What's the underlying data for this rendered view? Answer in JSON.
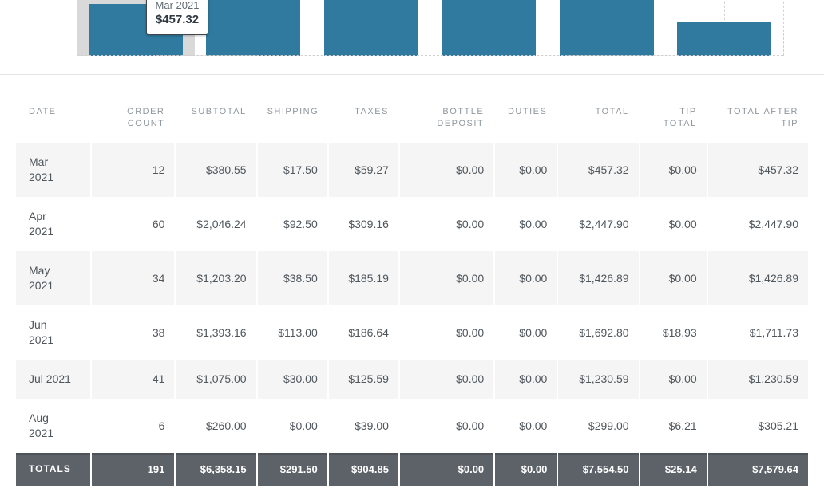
{
  "chart": {
    "tooltip": {
      "label": "Mar 2021",
      "value": "$457.32"
    },
    "hovered_index": 0,
    "colors": {
      "bar": "#2f7a9e",
      "hover_band": "#d9d9d9",
      "dashed_line": "#cfcfcf"
    }
  },
  "chart_data": {
    "type": "bar",
    "categories": [
      "Mar 2021",
      "Apr 2021",
      "May 2021",
      "Jun 2021",
      "Jul 2021",
      "Aug 2021"
    ],
    "values": [
      457.32,
      2447.9,
      1426.89,
      1692.8,
      1230.59,
      299.0
    ],
    "series_name": "Total",
    "title": "",
    "xlabel": "",
    "ylabel": "",
    "legend": false,
    "grid": false,
    "note_visible_tooltip": "Mar 2021 $457.32"
  },
  "table": {
    "columns": [
      {
        "label": "Date"
      },
      {
        "label": "Order Count"
      },
      {
        "label": "Subtotal"
      },
      {
        "label": "Shipping"
      },
      {
        "label": "Taxes"
      },
      {
        "label": "Bottle Deposit"
      },
      {
        "label": "Duties"
      },
      {
        "label": "Total"
      },
      {
        "label": "Tip Total"
      },
      {
        "label": "Total After Tip"
      }
    ],
    "rows": [
      [
        "Mar\n2021",
        "12",
        "$380.55",
        "$17.50",
        "$59.27",
        "$0.00",
        "$0.00",
        "$457.32",
        "$0.00",
        "$457.32"
      ],
      [
        "Apr\n2021",
        "60",
        "$2,046.24",
        "$92.50",
        "$309.16",
        "$0.00",
        "$0.00",
        "$2,447.90",
        "$0.00",
        "$2,447.90"
      ],
      [
        "May\n2021",
        "34",
        "$1,203.20",
        "$38.50",
        "$185.19",
        "$0.00",
        "$0.00",
        "$1,426.89",
        "$0.00",
        "$1,426.89"
      ],
      [
        "Jun\n2021",
        "38",
        "$1,393.16",
        "$113.00",
        "$186.64",
        "$0.00",
        "$0.00",
        "$1,692.80",
        "$18.93",
        "$1,711.73"
      ],
      [
        "Jul 2021",
        "41",
        "$1,075.00",
        "$30.00",
        "$125.59",
        "$0.00",
        "$0.00",
        "$1,230.59",
        "$0.00",
        "$1,230.59"
      ],
      [
        "Aug\n2021",
        "6",
        "$260.00",
        "$0.00",
        "$39.00",
        "$0.00",
        "$0.00",
        "$299.00",
        "$6.21",
        "$305.21"
      ]
    ],
    "totals": [
      "Totals",
      "191",
      "$6,358.15",
      "$291.50",
      "$904.85",
      "$0.00",
      "$0.00",
      "$7,554.50",
      "$25.14",
      "$7,579.64"
    ]
  }
}
